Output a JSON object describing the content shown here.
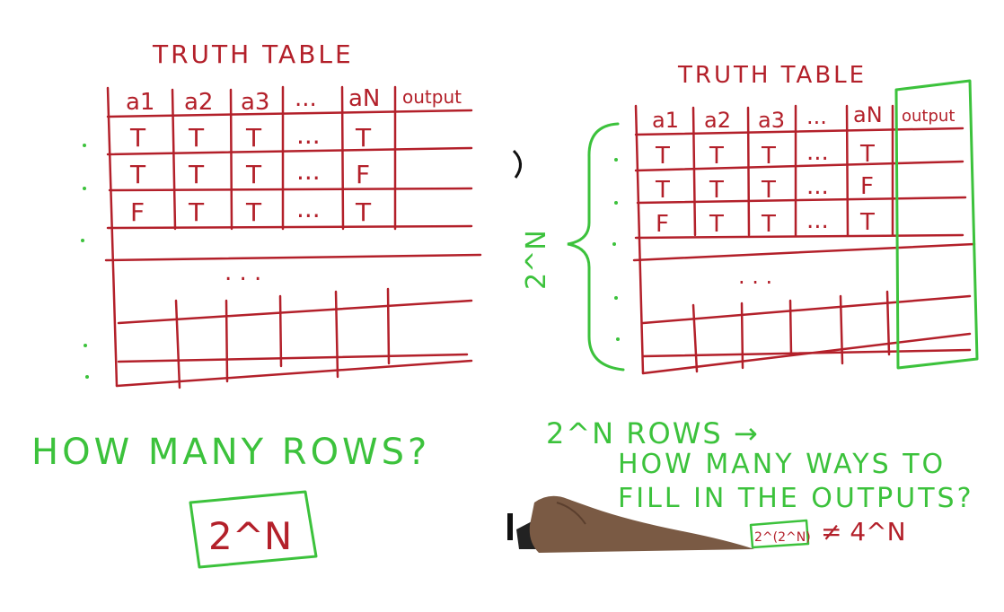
{
  "colors": {
    "red": "#b3202a",
    "green": "#3cc23c",
    "ink": "#111111",
    "skin": "#7a5a44"
  },
  "left_panel": {
    "title": "TRUTH TABLE",
    "headers": [
      "a1",
      "a2",
      "a3",
      "...",
      "aN",
      "output"
    ],
    "rows": [
      [
        "T",
        "T",
        "T",
        "...",
        "T"
      ],
      [
        "T",
        "T",
        "T",
        "...",
        "F"
      ],
      [
        "F",
        "T",
        "T",
        "...",
        "T"
      ]
    ],
    "ellipsis": ". . .",
    "question": "HOW MANY ROWS?",
    "answer": "2^N"
  },
  "right_panel": {
    "title": "TRUTH TABLE",
    "headers": [
      "a1",
      "a2",
      "a3",
      "...",
      "aN",
      "output"
    ],
    "rows": [
      [
        "T",
        "T",
        "T",
        "...",
        "T"
      ],
      [
        "T",
        "T",
        "T",
        "...",
        "F"
      ],
      [
        "F",
        "T",
        "T",
        "...",
        "T"
      ]
    ],
    "ellipsis": ". . .",
    "brace_label": "2^N",
    "rows_note": "2^N ROWS →",
    "question_line1": "HOW MANY WAYS TO",
    "question_line2": "FILL IN THE OUTPUTS?",
    "answer": "2^(2^N)",
    "comparison": "≠ 4^N"
  }
}
